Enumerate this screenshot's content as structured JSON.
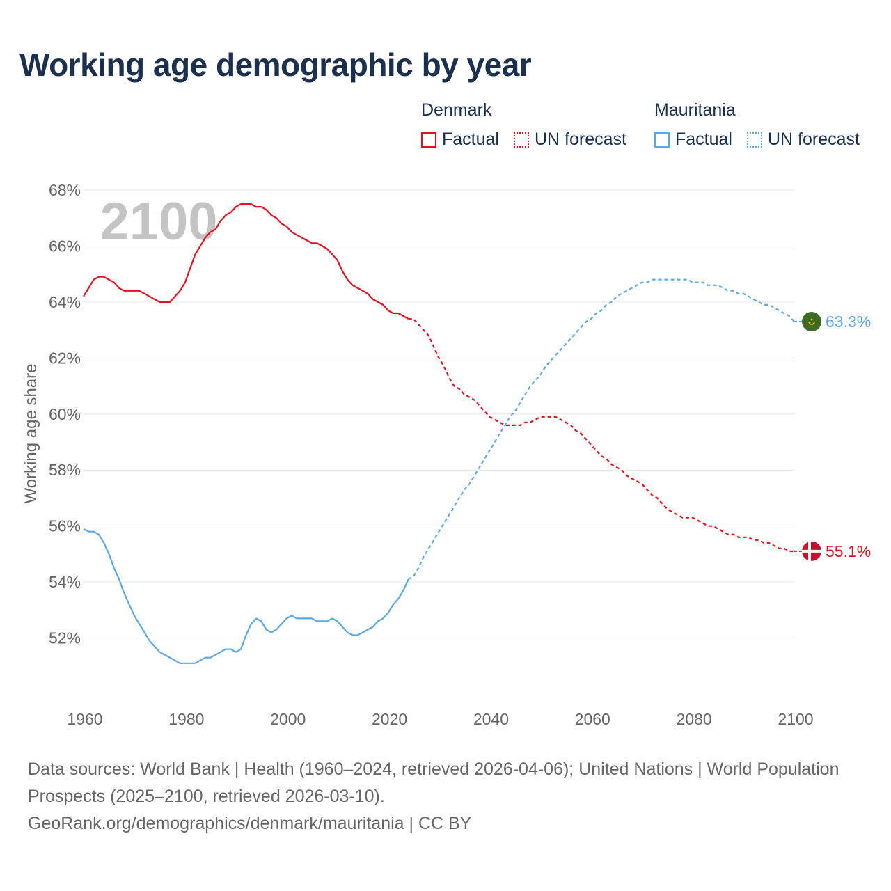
{
  "title": "Working age demographic by year",
  "legend": {
    "groups": [
      {
        "name": "Denmark",
        "color": "#e8101e",
        "factual_label": "Factual",
        "forecast_label": "UN forecast"
      },
      {
        "name": "Mauritania",
        "color": "#5ca8e6",
        "factual_label": "Factual",
        "forecast_label": "UN forecast"
      }
    ]
  },
  "year_label": "2100",
  "footer": {
    "source_line": "Data sources: World Bank | Health (1960–2024, retrieved 2026-04-06); United Nations | World Population Prospects (2025–2100, retrieved 2026-03-10).",
    "url_line": "GeoRank.org/demographics/denmark/mauritania | CC BY"
  },
  "chart_data": {
    "type": "line",
    "ylabel": "Working age share",
    "xlabel": "",
    "xlim": [
      1960,
      2100
    ],
    "ylim": [
      50,
      68
    ],
    "x_ticks": [
      "1960",
      "1980",
      "2000",
      "2020",
      "2040",
      "2060",
      "2080",
      "2100"
    ],
    "y_ticks": [
      "52%",
      "54%",
      "56%",
      "58%",
      "60%",
      "62%",
      "64%",
      "66%",
      "68%"
    ],
    "series": [
      {
        "name": "Denmark",
        "color": "#e8101e",
        "end_label": "55.1%",
        "factual": [
          [
            1960,
            64.2
          ],
          [
            1961,
            64.5
          ],
          [
            1962,
            64.8
          ],
          [
            1963,
            64.9
          ],
          [
            1964,
            64.9
          ],
          [
            1965,
            64.8
          ],
          [
            1966,
            64.7
          ],
          [
            1967,
            64.5
          ],
          [
            1968,
            64.4
          ],
          [
            1969,
            64.4
          ],
          [
            1970,
            64.4
          ],
          [
            1971,
            64.4
          ],
          [
            1972,
            64.3
          ],
          [
            1973,
            64.2
          ],
          [
            1974,
            64.1
          ],
          [
            1975,
            64.0
          ],
          [
            1976,
            64.0
          ],
          [
            1977,
            64.0
          ],
          [
            1978,
            64.2
          ],
          [
            1979,
            64.4
          ],
          [
            1980,
            64.7
          ],
          [
            1981,
            65.2
          ],
          [
            1982,
            65.7
          ],
          [
            1983,
            66.0
          ],
          [
            1984,
            66.3
          ],
          [
            1985,
            66.5
          ],
          [
            1986,
            66.6
          ],
          [
            1987,
            66.9
          ],
          [
            1988,
            67.1
          ],
          [
            1989,
            67.2
          ],
          [
            1990,
            67.4
          ],
          [
            1991,
            67.5
          ],
          [
            1992,
            67.5
          ],
          [
            1993,
            67.5
          ],
          [
            1994,
            67.4
          ],
          [
            1995,
            67.4
          ],
          [
            1996,
            67.3
          ],
          [
            1997,
            67.1
          ],
          [
            1998,
            67.0
          ],
          [
            1999,
            66.8
          ],
          [
            2000,
            66.7
          ],
          [
            2001,
            66.5
          ],
          [
            2002,
            66.4
          ],
          [
            2003,
            66.3
          ],
          [
            2004,
            66.2
          ],
          [
            2005,
            66.1
          ],
          [
            2006,
            66.1
          ],
          [
            2007,
            66.0
          ],
          [
            2008,
            65.9
          ],
          [
            2009,
            65.7
          ],
          [
            2010,
            65.5
          ],
          [
            2011,
            65.1
          ],
          [
            2012,
            64.8
          ],
          [
            2013,
            64.6
          ],
          [
            2014,
            64.5
          ],
          [
            2015,
            64.4
          ],
          [
            2016,
            64.3
          ],
          [
            2017,
            64.1
          ],
          [
            2018,
            64.0
          ],
          [
            2019,
            63.9
          ],
          [
            2020,
            63.7
          ],
          [
            2021,
            63.6
          ],
          [
            2022,
            63.6
          ],
          [
            2023,
            63.5
          ],
          [
            2024,
            63.4
          ]
        ],
        "forecast": [
          [
            2024,
            63.4
          ],
          [
            2025,
            63.4
          ],
          [
            2026,
            63.2
          ],
          [
            2027,
            63.0
          ],
          [
            2028,
            62.8
          ],
          [
            2029,
            62.4
          ],
          [
            2030,
            62.0
          ],
          [
            2031,
            61.7
          ],
          [
            2032,
            61.3
          ],
          [
            2033,
            61.0
          ],
          [
            2034,
            60.9
          ],
          [
            2035,
            60.7
          ],
          [
            2036,
            60.6
          ],
          [
            2037,
            60.5
          ],
          [
            2038,
            60.3
          ],
          [
            2039,
            60.1
          ],
          [
            2040,
            59.9
          ],
          [
            2041,
            59.8
          ],
          [
            2042,
            59.7
          ],
          [
            2043,
            59.6
          ],
          [
            2044,
            59.6
          ],
          [
            2045,
            59.6
          ],
          [
            2046,
            59.6
          ],
          [
            2047,
            59.7
          ],
          [
            2048,
            59.7
          ],
          [
            2049,
            59.8
          ],
          [
            2050,
            59.9
          ],
          [
            2051,
            59.9
          ],
          [
            2052,
            59.9
          ],
          [
            2053,
            59.9
          ],
          [
            2054,
            59.8
          ],
          [
            2055,
            59.7
          ],
          [
            2056,
            59.6
          ],
          [
            2057,
            59.4
          ],
          [
            2058,
            59.3
          ],
          [
            2059,
            59.1
          ],
          [
            2060,
            58.9
          ],
          [
            2061,
            58.7
          ],
          [
            2062,
            58.5
          ],
          [
            2063,
            58.4
          ],
          [
            2064,
            58.2
          ],
          [
            2065,
            58.1
          ],
          [
            2066,
            58.0
          ],
          [
            2067,
            57.8
          ],
          [
            2068,
            57.7
          ],
          [
            2069,
            57.6
          ],
          [
            2070,
            57.5
          ],
          [
            2071,
            57.3
          ],
          [
            2072,
            57.1
          ],
          [
            2073,
            57.0
          ],
          [
            2074,
            56.8
          ],
          [
            2075,
            56.6
          ],
          [
            2076,
            56.5
          ],
          [
            2077,
            56.4
          ],
          [
            2078,
            56.3
          ],
          [
            2079,
            56.3
          ],
          [
            2080,
            56.3
          ],
          [
            2081,
            56.2
          ],
          [
            2082,
            56.1
          ],
          [
            2083,
            56.0
          ],
          [
            2084,
            56.0
          ],
          [
            2085,
            55.9
          ],
          [
            2086,
            55.8
          ],
          [
            2087,
            55.7
          ],
          [
            2088,
            55.7
          ],
          [
            2089,
            55.6
          ],
          [
            2090,
            55.6
          ],
          [
            2091,
            55.6
          ],
          [
            2092,
            55.5
          ],
          [
            2093,
            55.5
          ],
          [
            2094,
            55.4
          ],
          [
            2095,
            55.4
          ],
          [
            2096,
            55.3
          ],
          [
            2097,
            55.2
          ],
          [
            2098,
            55.2
          ],
          [
            2099,
            55.1
          ],
          [
            2100,
            55.1
          ]
        ]
      },
      {
        "name": "Mauritania",
        "color": "#5ca8e6",
        "end_label": "63.3%",
        "factual": [
          [
            1960,
            55.9
          ],
          [
            1961,
            55.8
          ],
          [
            1962,
            55.8
          ],
          [
            1963,
            55.7
          ],
          [
            1964,
            55.4
          ],
          [
            1965,
            55.0
          ],
          [
            1966,
            54.5
          ],
          [
            1967,
            54.1
          ],
          [
            1968,
            53.6
          ],
          [
            1969,
            53.2
          ],
          [
            1970,
            52.8
          ],
          [
            1971,
            52.5
          ],
          [
            1972,
            52.2
          ],
          [
            1973,
            51.9
          ],
          [
            1974,
            51.7
          ],
          [
            1975,
            51.5
          ],
          [
            1976,
            51.4
          ],
          [
            1977,
            51.3
          ],
          [
            1978,
            51.2
          ],
          [
            1979,
            51.1
          ],
          [
            1980,
            51.1
          ],
          [
            1981,
            51.1
          ],
          [
            1982,
            51.1
          ],
          [
            1983,
            51.2
          ],
          [
            1984,
            51.3
          ],
          [
            1985,
            51.3
          ],
          [
            1986,
            51.4
          ],
          [
            1987,
            51.5
          ],
          [
            1988,
            51.6
          ],
          [
            1989,
            51.6
          ],
          [
            1990,
            51.5
          ],
          [
            1991,
            51.6
          ],
          [
            1992,
            52.1
          ],
          [
            1993,
            52.5
          ],
          [
            1994,
            52.7
          ],
          [
            1995,
            52.6
          ],
          [
            1996,
            52.3
          ],
          [
            1997,
            52.2
          ],
          [
            1998,
            52.3
          ],
          [
            1999,
            52.5
          ],
          [
            2000,
            52.7
          ],
          [
            2001,
            52.8
          ],
          [
            2002,
            52.7
          ],
          [
            2003,
            52.7
          ],
          [
            2004,
            52.7
          ],
          [
            2005,
            52.7
          ],
          [
            2006,
            52.6
          ],
          [
            2007,
            52.6
          ],
          [
            2008,
            52.6
          ],
          [
            2009,
            52.7
          ],
          [
            2010,
            52.6
          ],
          [
            2011,
            52.4
          ],
          [
            2012,
            52.2
          ],
          [
            2013,
            52.1
          ],
          [
            2014,
            52.1
          ],
          [
            2015,
            52.2
          ],
          [
            2016,
            52.3
          ],
          [
            2017,
            52.4
          ],
          [
            2018,
            52.6
          ],
          [
            2019,
            52.7
          ],
          [
            2020,
            52.9
          ],
          [
            2021,
            53.2
          ],
          [
            2022,
            53.4
          ],
          [
            2023,
            53.7
          ],
          [
            2024,
            54.1
          ]
        ],
        "forecast": [
          [
            2024,
            54.1
          ],
          [
            2025,
            54.2
          ],
          [
            2026,
            54.5
          ],
          [
            2027,
            54.9
          ],
          [
            2028,
            55.2
          ],
          [
            2029,
            55.5
          ],
          [
            2030,
            55.8
          ],
          [
            2031,
            56.1
          ],
          [
            2032,
            56.4
          ],
          [
            2033,
            56.7
          ],
          [
            2034,
            57.0
          ],
          [
            2035,
            57.3
          ],
          [
            2036,
            57.5
          ],
          [
            2037,
            57.8
          ],
          [
            2038,
            58.1
          ],
          [
            2039,
            58.4
          ],
          [
            2040,
            58.7
          ],
          [
            2041,
            59.0
          ],
          [
            2042,
            59.3
          ],
          [
            2043,
            59.6
          ],
          [
            2044,
            59.9
          ],
          [
            2045,
            60.1
          ],
          [
            2046,
            60.4
          ],
          [
            2047,
            60.7
          ],
          [
            2048,
            61.0
          ],
          [
            2049,
            61.2
          ],
          [
            2050,
            61.4
          ],
          [
            2051,
            61.7
          ],
          [
            2052,
            61.9
          ],
          [
            2053,
            62.1
          ],
          [
            2054,
            62.3
          ],
          [
            2055,
            62.5
          ],
          [
            2056,
            62.7
          ],
          [
            2057,
            62.9
          ],
          [
            2058,
            63.1
          ],
          [
            2059,
            63.3
          ],
          [
            2060,
            63.4
          ],
          [
            2061,
            63.6
          ],
          [
            2062,
            63.7
          ],
          [
            2063,
            63.9
          ],
          [
            2064,
            64.0
          ],
          [
            2065,
            64.2
          ],
          [
            2066,
            64.3
          ],
          [
            2067,
            64.4
          ],
          [
            2068,
            64.5
          ],
          [
            2069,
            64.6
          ],
          [
            2070,
            64.7
          ],
          [
            2071,
            64.7
          ],
          [
            2072,
            64.8
          ],
          [
            2073,
            64.8
          ],
          [
            2074,
            64.8
          ],
          [
            2075,
            64.8
          ],
          [
            2076,
            64.8
          ],
          [
            2077,
            64.8
          ],
          [
            2078,
            64.8
          ],
          [
            2079,
            64.8
          ],
          [
            2080,
            64.7
          ],
          [
            2081,
            64.7
          ],
          [
            2082,
            64.7
          ],
          [
            2083,
            64.6
          ],
          [
            2084,
            64.6
          ],
          [
            2085,
            64.6
          ],
          [
            2086,
            64.5
          ],
          [
            2087,
            64.4
          ],
          [
            2088,
            64.4
          ],
          [
            2089,
            64.3
          ],
          [
            2090,
            64.3
          ],
          [
            2091,
            64.2
          ],
          [
            2092,
            64.1
          ],
          [
            2093,
            64.0
          ],
          [
            2094,
            63.9
          ],
          [
            2095,
            63.9
          ],
          [
            2096,
            63.8
          ],
          [
            2097,
            63.7
          ],
          [
            2098,
            63.6
          ],
          [
            2099,
            63.5
          ],
          [
            2100,
            63.3
          ]
        ]
      }
    ]
  }
}
